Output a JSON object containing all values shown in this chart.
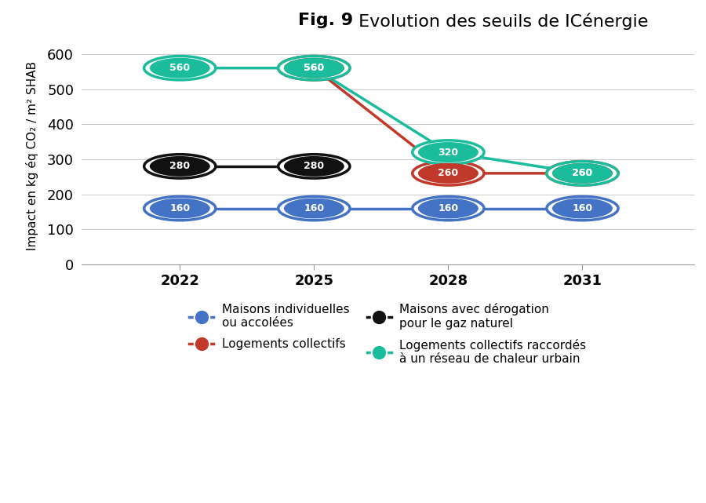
{
  "title_bold": "Fig. 9",
  "title_regular": " Evolution des seuils de ICénergie",
  "ylabel": "Impact en kg éq CO₂ / m² SHAB",
  "years": [
    2022,
    2025,
    2028,
    2031
  ],
  "series": [
    {
      "key": "maisons_ind",
      "label": "Maisons individuelles\nou accolées",
      "values": [
        160,
        160,
        160,
        160
      ],
      "color": "#4472C4"
    },
    {
      "key": "maisons_derog",
      "label": "Maisons avec dérogation\npour le gaz naturel",
      "values": [
        280,
        280,
        null,
        null
      ],
      "color": "#111111"
    },
    {
      "key": "log_collectifs",
      "label": "Logements collectifs",
      "values": [
        null,
        560,
        260,
        260
      ],
      "color": "#C0392B"
    },
    {
      "key": "log_collectifs_raccordes",
      "label": "Logements collectifs raccordés\nà un réseau de chaleur urbain",
      "values": [
        560,
        560,
        320,
        260
      ],
      "color": "#1ABC9C"
    }
  ],
  "ylim": [
    0,
    620
  ],
  "yticks": [
    0,
    100,
    200,
    300,
    400,
    500,
    600
  ],
  "background_color": "#ffffff",
  "linewidth": 2.5,
  "marker_fontsize": 9,
  "axis_fontsize": 13,
  "ylabel_fontsize": 11,
  "title_fontsize": 16,
  "legend_fontsize": 11
}
